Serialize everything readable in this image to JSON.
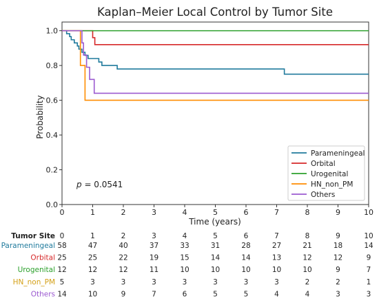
{
  "chart_data": {
    "type": "line",
    "title": "Kaplan–Meier Local Control by Tumor Site",
    "xlabel": "Time (years)",
    "ylabel": "Probability",
    "xlim": [
      0,
      10
    ],
    "ylim": [
      0,
      1.05
    ],
    "xticks": [
      0,
      1,
      2,
      3,
      4,
      5,
      6,
      7,
      8,
      9,
      10
    ],
    "yticks": [
      "0.0",
      "0.2",
      "0.4",
      "0.6",
      "0.8",
      "1.0"
    ],
    "grid": false,
    "legend_position": "bottom-right",
    "step": true,
    "series": [
      {
        "name": "Parameningeal",
        "color": "#1f7a9c",
        "points": [
          [
            0,
            1.0
          ],
          [
            0.15,
            0.983
          ],
          [
            0.25,
            0.966
          ],
          [
            0.3,
            0.948
          ],
          [
            0.4,
            0.93
          ],
          [
            0.5,
            0.912
          ],
          [
            0.55,
            0.894
          ],
          [
            0.65,
            0.876
          ],
          [
            0.75,
            0.858
          ],
          [
            0.85,
            0.84
          ],
          [
            1.2,
            0.82
          ],
          [
            1.3,
            0.8
          ],
          [
            1.8,
            0.78
          ],
          [
            7.25,
            0.78
          ],
          [
            7.25,
            0.75
          ],
          [
            10,
            0.75
          ]
        ]
      },
      {
        "name": "Orbital",
        "color": "#d62728",
        "points": [
          [
            0,
            1.0
          ],
          [
            1.0,
            1.0
          ],
          [
            1.0,
            0.96
          ],
          [
            1.07,
            0.92
          ],
          [
            10,
            0.92
          ]
        ]
      },
      {
        "name": "Urogenital",
        "color": "#2ca02c",
        "points": [
          [
            0,
            1.0
          ],
          [
            10,
            1.0
          ]
        ]
      },
      {
        "name": "HN_non_PM",
        "color": "#ff8c00",
        "points": [
          [
            0,
            1.0
          ],
          [
            0.6,
            1.0
          ],
          [
            0.6,
            0.8
          ],
          [
            0.75,
            0.6
          ],
          [
            10,
            0.6
          ]
        ]
      },
      {
        "name": "Others",
        "color": "#9b59d0",
        "points": [
          [
            0,
            1.0
          ],
          [
            0.65,
            1.0
          ],
          [
            0.65,
            0.93
          ],
          [
            0.7,
            0.86
          ],
          [
            0.8,
            0.79
          ],
          [
            0.9,
            0.72
          ],
          [
            1.05,
            0.64
          ],
          [
            10,
            0.64
          ]
        ]
      }
    ],
    "annotation": {
      "prefix": "p",
      "value": " = 0.0541"
    },
    "risk_table": {
      "header": "Tumor Site",
      "times": [
        "0",
        "1",
        "2",
        "3",
        "4",
        "5",
        "6",
        "7",
        "8",
        "9",
        "10"
      ],
      "rows": [
        {
          "label": "Parameningeal",
          "color": "#1f7a9c",
          "values": [
            "58",
            "47",
            "40",
            "37",
            "33",
            "31",
            "28",
            "27",
            "21",
            "18",
            "14"
          ]
        },
        {
          "label": "Orbital",
          "color": "#d62728",
          "values": [
            "25",
            "25",
            "22",
            "19",
            "15",
            "14",
            "14",
            "13",
            "12",
            "12",
            "9"
          ]
        },
        {
          "label": "Urogenital",
          "color": "#2ca02c",
          "values": [
            "12",
            "12",
            "12",
            "11",
            "10",
            "10",
            "10",
            "10",
            "10",
            "9",
            "7"
          ]
        },
        {
          "label": "HN_non_PM",
          "color": "#d4a017",
          "values": [
            "5",
            "3",
            "3",
            "3",
            "3",
            "3",
            "3",
            "3",
            "2",
            "2",
            "1"
          ]
        },
        {
          "label": "Others",
          "color": "#9b59d0",
          "values": [
            "14",
            "10",
            "9",
            "7",
            "6",
            "5",
            "5",
            "4",
            "4",
            "3",
            "3"
          ]
        }
      ]
    }
  }
}
